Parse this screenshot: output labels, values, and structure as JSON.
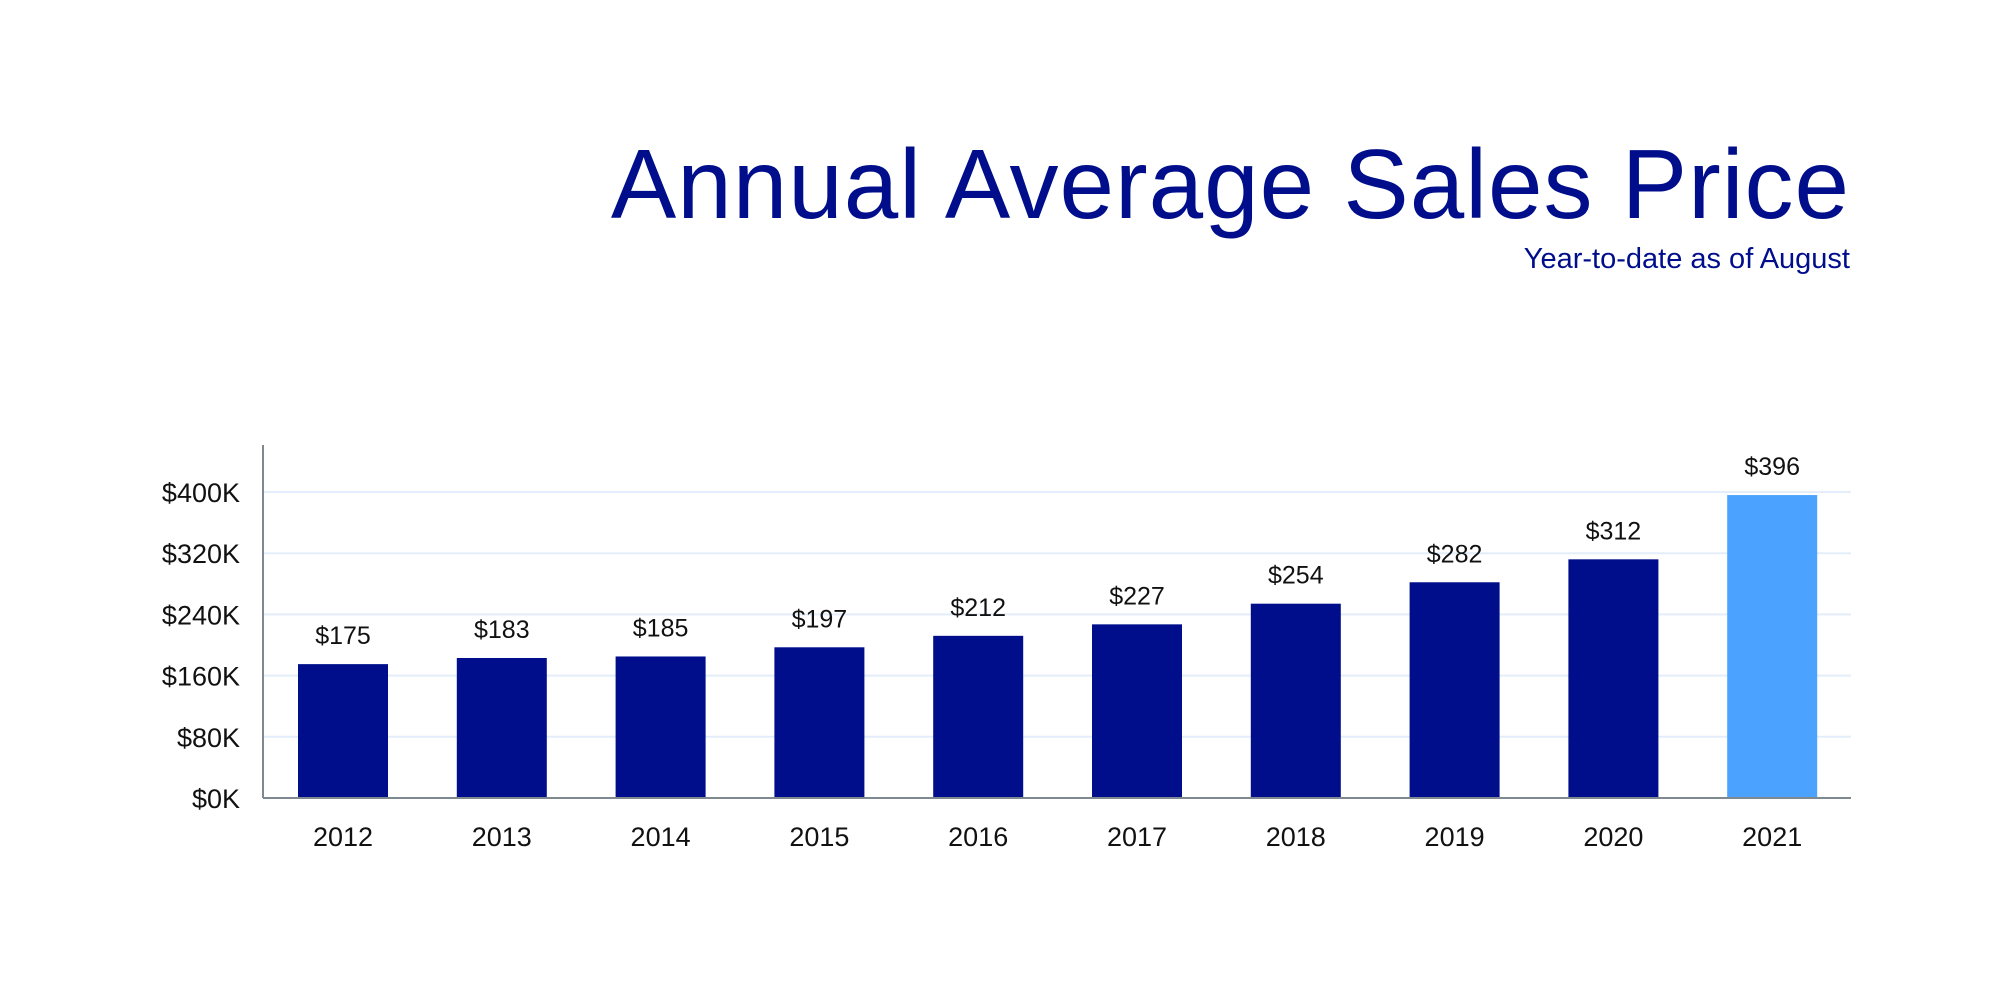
{
  "chart_data": {
    "type": "bar",
    "title": "Annual Average Sales Price",
    "subtitle": "Year-to-date as of August",
    "xlabel": "",
    "ylabel": "",
    "categories": [
      "2012",
      "2013",
      "2014",
      "2015",
      "2016",
      "2017",
      "2018",
      "2019",
      "2020",
      "2021"
    ],
    "values": [
      175,
      183,
      185,
      197,
      212,
      227,
      254,
      282,
      312,
      396
    ],
    "data_labels": [
      "$175",
      "$183",
      "$185",
      "$197",
      "$212",
      "$227",
      "$254",
      "$282",
      "$312",
      "$396"
    ],
    "ylim": [
      0,
      440
    ],
    "yticks": [
      0,
      80,
      160,
      240,
      320,
      400
    ],
    "ytick_labels": [
      "$0K",
      "$80K",
      "$160K",
      "$240K",
      "$320K",
      "$400K"
    ],
    "grid": true,
    "colors": {
      "default": "#000e8c",
      "highlight": "#4ba3ff",
      "grid": "#e3eefa",
      "axis": "#7f8a90"
    },
    "highlight_category": "2021"
  }
}
